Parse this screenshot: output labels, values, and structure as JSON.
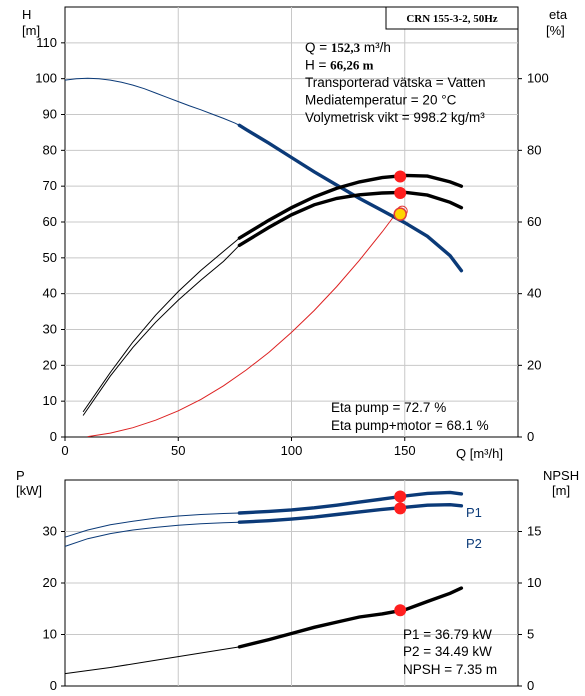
{
  "chart_data": [
    {
      "type": "line",
      "title": "CRN 155-3-2, 50Hz",
      "xlabel": "Q [m³/h]",
      "ylabel": "H [m]",
      "ylabel_unit_left": "H",
      "ylabel_unit_left2": "[m]",
      "ylabel_right": "eta",
      "ylabel_right2": "[%]",
      "xlim": [
        0,
        200
      ],
      "ylim": [
        0,
        120
      ],
      "y2lim": [
        0,
        120
      ],
      "x_ticks": [
        "0",
        "50",
        "100",
        "150"
      ],
      "x_tick_values": [
        0,
        50,
        100,
        150
      ],
      "y_ticks": [
        0,
        10,
        20,
        30,
        40,
        50,
        60,
        70,
        80,
        90,
        100,
        110
      ],
      "y2_ticks": [
        0,
        20,
        40,
        60,
        80,
        100
      ],
      "grid": true,
      "series": [
        {
          "key": "H",
          "color": "#0b3a78",
          "x": [
            0,
            5,
            10,
            15,
            20,
            25,
            30,
            35,
            40,
            45,
            50,
            55,
            60,
            65,
            70,
            75,
            77,
            80,
            90,
            100,
            110,
            120,
            130,
            140,
            150,
            160,
            170,
            175
          ],
          "y": [
            99.6,
            100.0,
            100.1,
            100.0,
            99.6,
            99.0,
            98.2,
            97.2,
            96.0,
            94.8,
            93.6,
            92.4,
            91.3,
            90.1,
            88.9,
            87.6,
            87.0,
            85.8,
            82.0,
            78.0,
            74.0,
            70.3,
            66.6,
            63.2,
            59.8,
            56.0,
            50.6,
            46.4
          ],
          "bold_from_x": 77
        },
        {
          "key": "Eta pump",
          "color": "#000000",
          "x": [
            8,
            20,
            30,
            40,
            50,
            60,
            70,
            77,
            90,
            100,
            110,
            120,
            130,
            140,
            150,
            160,
            170,
            175
          ],
          "y2": [
            7,
            18,
            26.5,
            34,
            40.6,
            46.5,
            51.8,
            55.5,
            60.5,
            64.0,
            67.0,
            69.4,
            71.2,
            72.4,
            73.0,
            72.8,
            71.2,
            70.0
          ],
          "bold_from_x": 77
        },
        {
          "key": "Eta pump+motor",
          "color": "#000000",
          "x": [
            8,
            20,
            30,
            40,
            50,
            60,
            70,
            77,
            90,
            100,
            110,
            120,
            130,
            140,
            150,
            160,
            170,
            175
          ],
          "y2": [
            6,
            17,
            25,
            32,
            38.2,
            43.8,
            49.0,
            53.5,
            58.5,
            62.0,
            64.8,
            66.6,
            67.6,
            68.1,
            68.3,
            67.5,
            65.5,
            64.0
          ],
          "bold_from_x": 77
        },
        {
          "key": "System curve",
          "color": "#dd2222",
          "x": [
            10,
            20,
            30,
            40,
            50,
            60,
            70,
            80,
            90,
            100,
            110,
            120,
            130,
            140,
            148
          ],
          "y": [
            0.1,
            1.1,
            2.6,
            4.7,
            7.3,
            10.5,
            14.3,
            18.7,
            23.6,
            29.2,
            35.3,
            42.0,
            49.3,
            57.2,
            63.9
          ]
        }
      ],
      "operating_point": {
        "x": 148,
        "H": 62.2,
        "eta_pump": 72.7,
        "eta_pump_motor": 68.1
      },
      "eta_labels": [
        "Eta pump = 72.7 %",
        "Eta pump+motor = 68.1 %"
      ],
      "info_lines": [
        {
          "label": "Q",
          "eq": "= ",
          "value": "152,3",
          "unit": " m³/h",
          "bold_value": true
        },
        {
          "label": "H",
          "eq": "= ",
          "value": "66,26 m",
          "unit": "",
          "bold_value": true
        },
        {
          "label": "",
          "eq": "",
          "value": "Transporterad vätska = Vatten",
          "unit": "",
          "bold_value": false
        },
        {
          "label": "",
          "eq": "",
          "value": "Mediatemperatur = 20 °C",
          "unit": "",
          "bold_value": false
        },
        {
          "label": "",
          "eq": "",
          "value": "Volymetrisk vikt = 998.2 kg/m³",
          "unit": "",
          "bold_value": false
        }
      ]
    },
    {
      "type": "line",
      "title": "",
      "ylabel": "P",
      "ylabel2": "[kW]",
      "ylabel_right": "NPSH",
      "ylabel_right2": "[m]",
      "xlim": [
        0,
        200
      ],
      "ylim": [
        0,
        40
      ],
      "y2lim": [
        0,
        20
      ],
      "y_ticks": [
        0,
        10,
        20,
        30
      ],
      "y2_ticks": [
        0,
        5,
        10,
        15
      ],
      "grid": true,
      "series": [
        {
          "name": "P1",
          "color": "#0b3a78",
          "x": [
            0,
            10,
            20,
            30,
            40,
            50,
            60,
            70,
            77,
            90,
            100,
            110,
            120,
            130,
            140,
            150,
            160,
            170,
            175
          ],
          "y": [
            28.9,
            30.3,
            31.3,
            32.0,
            32.6,
            33.0,
            33.3,
            33.5,
            33.6,
            33.9,
            34.2,
            34.6,
            35.1,
            35.7,
            36.3,
            36.9,
            37.4,
            37.6,
            37.3
          ],
          "bold_from_x": 77
        },
        {
          "name": "P2",
          "color": "#0b3a78",
          "x": [
            0,
            10,
            20,
            30,
            40,
            50,
            60,
            70,
            77,
            90,
            100,
            110,
            120,
            130,
            140,
            150,
            160,
            170,
            175
          ],
          "y": [
            27.1,
            28.6,
            29.6,
            30.3,
            30.8,
            31.2,
            31.5,
            31.7,
            31.8,
            32.1,
            32.4,
            32.8,
            33.3,
            33.8,
            34.3,
            34.7,
            35.1,
            35.2,
            35.0
          ],
          "bold_from_x": 77
        },
        {
          "name": "NPSH",
          "color": "#000000",
          "x": [
            0,
            20,
            40,
            60,
            77,
            90,
            100,
            110,
            120,
            130,
            140,
            150,
            160,
            170,
            175
          ],
          "y2": [
            1.2,
            1.8,
            2.5,
            3.2,
            3.8,
            4.5,
            5.1,
            5.7,
            6.2,
            6.7,
            7.0,
            7.4,
            8.2,
            9.0,
            9.5
          ],
          "bold_from_x": 77
        }
      ],
      "operating_point": {
        "x": 148,
        "P1": 36.79,
        "P2": 34.49,
        "NPSH": 7.35
      },
      "value_labels": [
        "P1 = 36.79 kW",
        "P2 = 34.49 kW",
        "NPSH = 7.35 m"
      ]
    }
  ]
}
